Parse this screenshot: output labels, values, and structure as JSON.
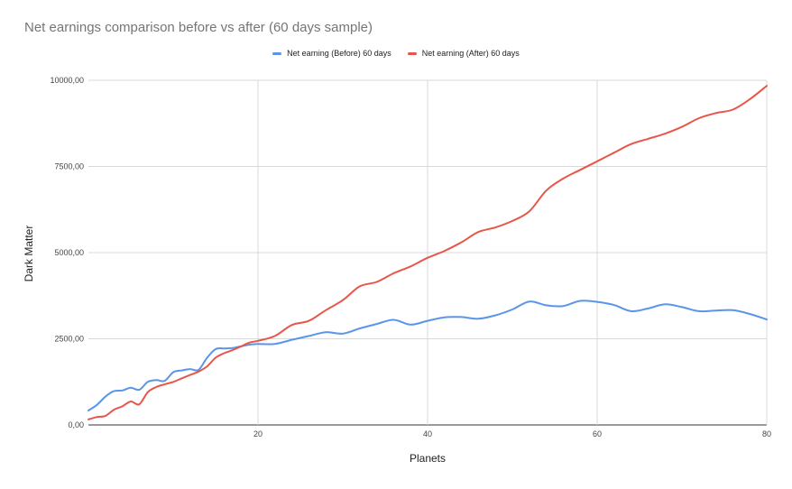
{
  "chart_data": {
    "type": "line",
    "title": "Net earnings comparison before vs after (60 days sample)",
    "xlabel": "Planets",
    "ylabel": "Dark Matter",
    "xlim": [
      0,
      80
    ],
    "ylim": [
      0,
      10000
    ],
    "x_ticks": [
      {
        "value": 20,
        "label": "20"
      },
      {
        "value": 40,
        "label": "40"
      },
      {
        "value": 60,
        "label": "60"
      },
      {
        "value": 80,
        "label": "80"
      }
    ],
    "y_ticks": [
      {
        "value": 0,
        "label": "0,00"
      },
      {
        "value": 2500,
        "label": "2500,00"
      },
      {
        "value": 5000,
        "label": "5000,00"
      },
      {
        "value": 7500,
        "label": "7500,00"
      },
      {
        "value": 10000,
        "label": "10000,00"
      }
    ],
    "grid": true,
    "legend_position": "top",
    "x": [
      0,
      1,
      2,
      3,
      4,
      5,
      6,
      7,
      8,
      9,
      10,
      11,
      12,
      13,
      14,
      15,
      16,
      17,
      18,
      19,
      20,
      22,
      24,
      26,
      28,
      30,
      32,
      34,
      36,
      38,
      40,
      42,
      44,
      46,
      48,
      50,
      52,
      54,
      56,
      58,
      60,
      62,
      64,
      66,
      68,
      70,
      72,
      74,
      76,
      78,
      80
    ],
    "series": [
      {
        "name": "Net earning (Before) 60 days",
        "color": "#5b95e9",
        "values": [
          420,
          580,
          820,
          980,
          1000,
          1080,
          1020,
          1250,
          1300,
          1280,
          1530,
          1580,
          1620,
          1600,
          1950,
          2200,
          2220,
          2230,
          2280,
          2330,
          2350,
          2350,
          2470,
          2580,
          2690,
          2650,
          2800,
          2930,
          3050,
          2910,
          3020,
          3120,
          3130,
          3080,
          3180,
          3350,
          3580,
          3470,
          3450,
          3600,
          3570,
          3480,
          3300,
          3380,
          3500,
          3420,
          3300,
          3320,
          3330,
          3220,
          3060
        ]
      },
      {
        "name": "Net earning (After) 60 days",
        "color": "#e8564a",
        "values": [
          160,
          230,
          260,
          440,
          540,
          680,
          600,
          950,
          1100,
          1180,
          1250,
          1350,
          1450,
          1550,
          1700,
          1950,
          2080,
          2170,
          2280,
          2390,
          2440,
          2580,
          2900,
          3020,
          3330,
          3620,
          4020,
          4150,
          4400,
          4600,
          4850,
          5050,
          5300,
          5600,
          5730,
          5920,
          6200,
          6800,
          7150,
          7400,
          7650,
          7900,
          8150,
          8300,
          8450,
          8650,
          8900,
          9050,
          9150,
          9450,
          9840
        ]
      }
    ]
  }
}
